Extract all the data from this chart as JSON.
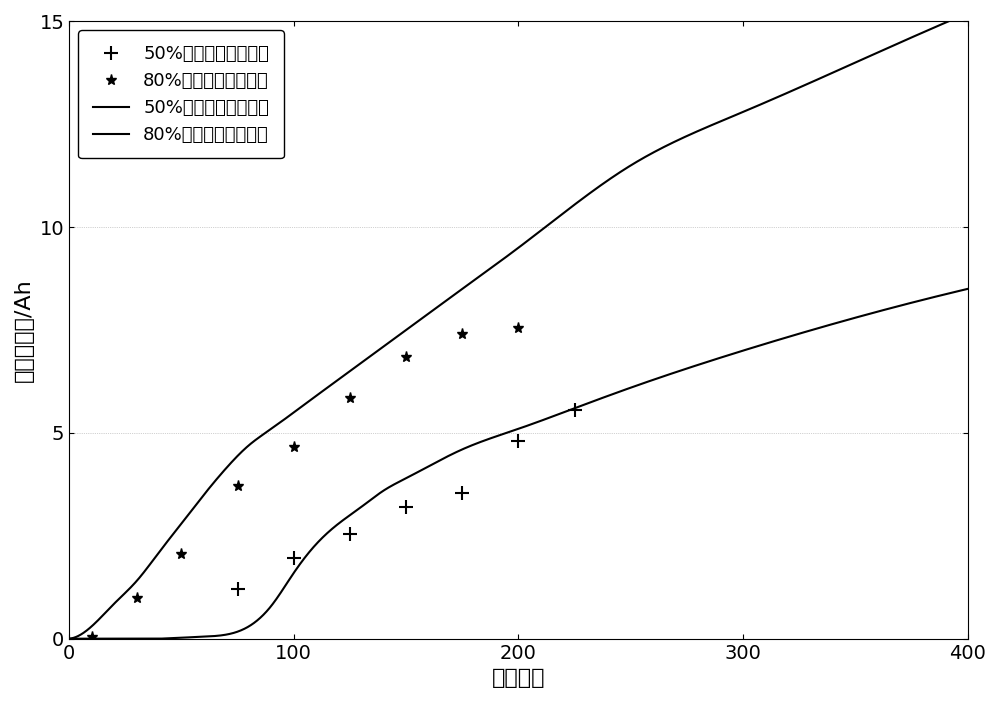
{
  "title": "",
  "xlabel": "循环次数",
  "ylabel": "容量衰退量/Ah",
  "xlim": [
    0,
    400
  ],
  "ylim": [
    0,
    15
  ],
  "xticks": [
    0,
    100,
    200,
    300,
    400
  ],
  "yticks": [
    0,
    5,
    10,
    15
  ],
  "background_color": "#ffffff",
  "line_color": "#000000",
  "dod50_scatter_x": [
    75,
    100,
    125,
    150,
    175,
    200,
    225
  ],
  "dod50_scatter_y": [
    1.2,
    1.95,
    2.55,
    3.2,
    3.55,
    4.8,
    5.55
  ],
  "dod80_scatter_x": [
    10,
    30,
    50,
    75,
    100,
    125,
    150,
    175,
    200
  ],
  "dod80_scatter_y": [
    0.05,
    1.0,
    2.05,
    3.7,
    4.65,
    5.85,
    6.85,
    7.4,
    7.55
  ],
  "legend_label_50_scatter": "50%放电深度测量数据",
  "legend_label_80_scatter": "80%放电深度测量数据",
  "legend_label_50_curve": "50%放电深度拟合曲线",
  "legend_label_80_curve": "80%放电深度拟合曲线",
  "curve80_L": 8.5,
  "curve80_k": 0.045,
  "curve80_x0": 60,
  "curve80_linear_a": 0.02,
  "curve50_L": 6.5,
  "curve50_k": 0.055,
  "curve50_x0": 110,
  "curve50_linear_a": 0.012,
  "fontsize_label": 16,
  "fontsize_tick": 14,
  "fontsize_legend": 13
}
